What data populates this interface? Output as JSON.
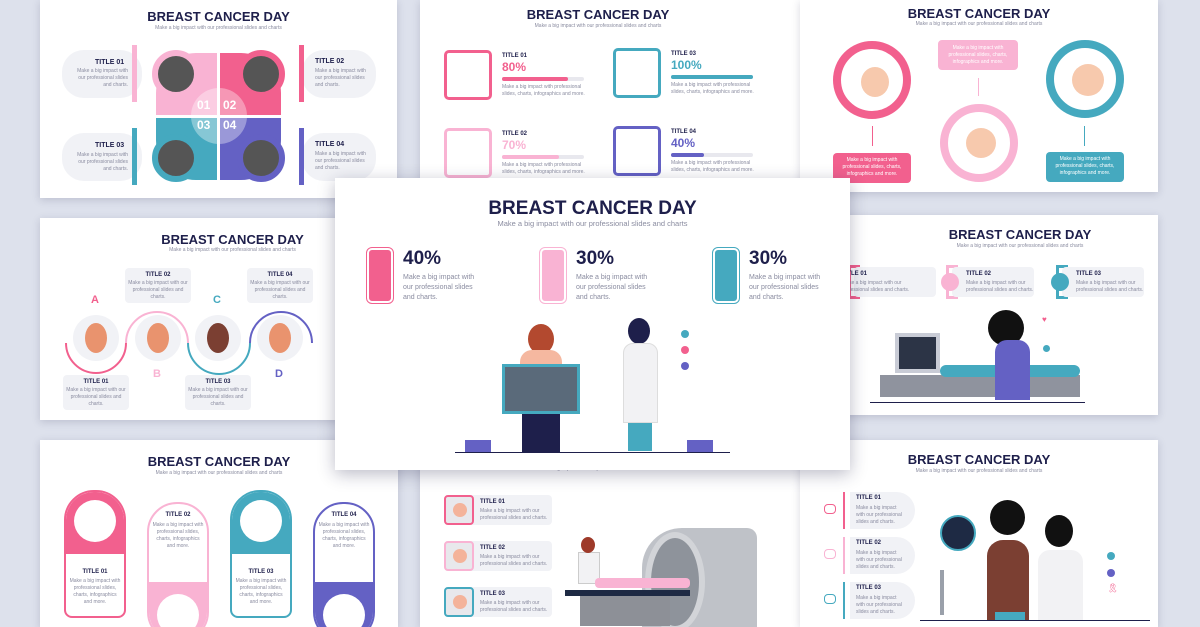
{
  "common": {
    "title": "BREAST CANCER DAY",
    "subtitle": "Make a big impact with our professional slides and charts",
    "body_a": "Make a big impact with our professional slides and charts.",
    "body_b": "Make a big impact with professional slides, charts, infographics and more."
  },
  "colors": {
    "pink": "#f2608e",
    "light_pink": "#f9b3d3",
    "teal": "#45a9bf",
    "purple": "#6461c4",
    "navy": "#1e1f4b",
    "background": "#dde1ec"
  },
  "slide_quadrant": {
    "items": [
      {
        "label": "TITLE 01",
        "num": "01"
      },
      {
        "label": "TITLE 02",
        "num": "02"
      },
      {
        "label": "TITLE 03",
        "num": "03"
      },
      {
        "label": "TITLE 04",
        "num": "04"
      }
    ]
  },
  "slide_progress": {
    "items": [
      {
        "label": "TITLE 01",
        "value": "80%",
        "fraction": 0.8,
        "icon": "ultrasound-icon"
      },
      {
        "label": "TITLE 03",
        "value": "100%",
        "fraction": 1.0,
        "icon": "woman-icon"
      },
      {
        "label": "TITLE 02",
        "value": "70%",
        "fraction": 0.7,
        "icon": "mri-icon"
      },
      {
        "label": "TITLE 04",
        "value": "40%",
        "fraction": 0.4,
        "icon": "stethoscope-icon"
      }
    ]
  },
  "slide_circles": {},
  "slide_wave": {
    "items": [
      {
        "label": "TITLE 01",
        "letter": "A"
      },
      {
        "label": "TITLE 02",
        "letter": "B"
      },
      {
        "label": "TITLE 03",
        "letter": "C"
      },
      {
        "label": "TITLE 04",
        "letter": "D"
      }
    ]
  },
  "slide_center": {
    "stats": [
      {
        "value": "40%",
        "icon": "iv-drip-icon"
      },
      {
        "value": "30%",
        "icon": "breast-icon"
      },
      {
        "value": "30%",
        "icon": "ribbon-hands-icon"
      }
    ]
  },
  "slide_ultrasound": {
    "items": [
      {
        "label": "TITLE 01"
      },
      {
        "label": "TITLE 02"
      },
      {
        "label": "TITLE 03"
      }
    ]
  },
  "slide_cards": {
    "items": [
      {
        "label": "TITLE 01"
      },
      {
        "label": "TITLE 02"
      },
      {
        "label": "TITLE 03"
      },
      {
        "label": "TITLE 04"
      }
    ]
  },
  "slide_mri": {
    "items": [
      {
        "label": "TITLE 01"
      },
      {
        "label": "TITLE 02"
      },
      {
        "label": "TITLE 03"
      }
    ]
  },
  "slide_exam": {
    "items": [
      {
        "label": "TITLE 01"
      },
      {
        "label": "TITLE 02"
      },
      {
        "label": "TITLE 03"
      }
    ]
  }
}
